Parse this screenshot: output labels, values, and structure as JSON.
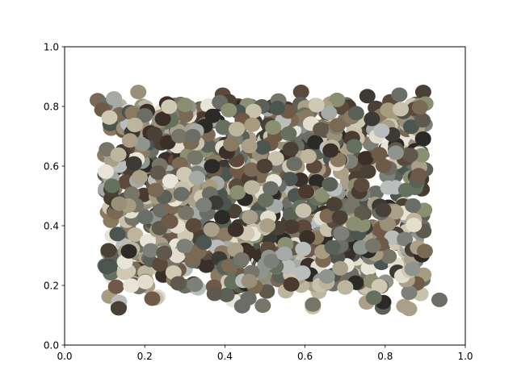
{
  "chart_data": {
    "type": "scatter",
    "title": "",
    "xlabel": "",
    "ylabel": "",
    "xlim": [
      0,
      1
    ],
    "ylim": [
      0,
      1
    ],
    "grid": false,
    "x_ticks": [
      "0.0",
      "0.2",
      "0.4",
      "0.6",
      "0.8",
      "1.0"
    ],
    "y_ticks": [
      "0.0",
      "0.2",
      "0.4",
      "0.6",
      "0.8",
      "1.0"
    ],
    "point_count": 1200,
    "point_distribution": {
      "x_range": [
        0.07,
        0.93
      ],
      "y_range": [
        0.12,
        0.85
      ]
    },
    "palette": [
      "#2b2a26",
      "#3c3a34",
      "#4a4036",
      "#5b4a3c",
      "#6e5a47",
      "#7a6a55",
      "#8a7a62",
      "#9a8f78",
      "#aaa08a",
      "#bdb59d",
      "#cfc8b2",
      "#e2ddcc",
      "#6b6e66",
      "#7d8079",
      "#5c6158",
      "#8f958e",
      "#a6aaa6",
      "#b9bdbc",
      "#4d5550",
      "#65705f",
      "#8a8f72",
      "#4a3a30",
      "#3a2f29",
      "#c8c2ad",
      "#e8e4d8",
      "#777468",
      "#a89c80",
      "#5f584c"
    ]
  }
}
